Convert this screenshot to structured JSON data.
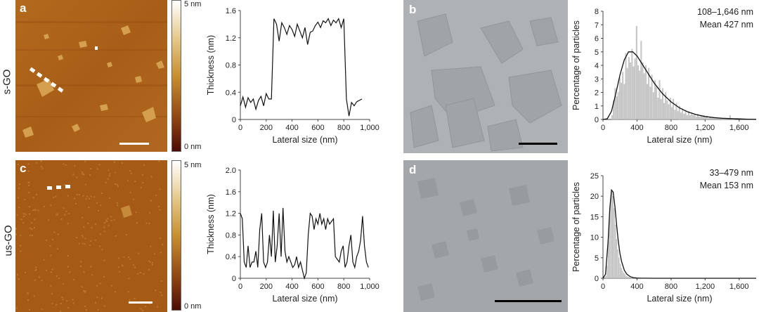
{
  "figure": {
    "row_labels": [
      "s-GO",
      "us-GO"
    ],
    "panels": {
      "a": {
        "letter": "a"
      },
      "b": {
        "letter": "b"
      },
      "c": {
        "letter": "c"
      },
      "d": {
        "letter": "d"
      }
    },
    "colorbar": {
      "top_label": "5 nm",
      "bottom_label": "0 nm"
    },
    "stats": {
      "b": {
        "range": "108–1,646 nm",
        "mean": "Mean 427 nm"
      },
      "d": {
        "range": "33–479 nm",
        "mean": "Mean 153 nm"
      }
    },
    "colors": {
      "afm_mid": "#b36a1c",
      "afm_dark": "#7a2e0b",
      "tem_bg": "#a9adb0",
      "line": "#111111",
      "hist_bar": "#c8c8c8"
    }
  },
  "chart_data": [
    {
      "id": "profile-top",
      "type": "line",
      "title": "",
      "xlabel": "Lateral size (nm)",
      "ylabel": "Thickness (nm)",
      "xlim": [
        0,
        1000
      ],
      "ylim": [
        0,
        1.6
      ],
      "xticks": [
        0,
        200,
        400,
        600,
        800,
        1000
      ],
      "xtick_labels": [
        "0",
        "200",
        "400",
        "600",
        "800",
        "1,000"
      ],
      "yticks": [
        0,
        0.4,
        0.8,
        1.2,
        1.6
      ],
      "ytick_labels": [
        "0",
        "0.4",
        "0.8",
        "1.2",
        "1.6"
      ],
      "x": [
        0,
        20,
        40,
        60,
        80,
        100,
        120,
        140,
        160,
        180,
        200,
        220,
        240,
        260,
        280,
        300,
        320,
        340,
        360,
        380,
        400,
        420,
        440,
        460,
        480,
        500,
        520,
        540,
        560,
        580,
        600,
        620,
        640,
        660,
        680,
        700,
        720,
        740,
        760,
        780,
        800,
        820,
        840,
        860,
        880,
        900,
        920,
        940
      ],
      "y": [
        0.2,
        0.33,
        0.18,
        0.32,
        0.25,
        0.3,
        0.15,
        0.28,
        0.34,
        0.2,
        0.38,
        0.3,
        0.3,
        1.48,
        1.4,
        1.15,
        1.42,
        1.35,
        1.25,
        1.38,
        1.32,
        1.22,
        1.4,
        1.3,
        1.2,
        1.35,
        1.1,
        1.28,
        1.3,
        1.38,
        1.43,
        1.35,
        1.45,
        1.42,
        1.48,
        1.38,
        1.46,
        1.42,
        1.48,
        1.35,
        1.48,
        0.3,
        0.05,
        0.25,
        0.2,
        0.26,
        0.28,
        0.3
      ]
    },
    {
      "id": "profile-bottom",
      "type": "line",
      "title": "",
      "xlabel": "Lateral size (nm)",
      "ylabel": "Thickness (nm)",
      "xlim": [
        0,
        1000
      ],
      "ylim": [
        0,
        2.0
      ],
      "xticks": [
        0,
        200,
        400,
        600,
        800,
        1000
      ],
      "xtick_labels": [
        "0",
        "200",
        "400",
        "600",
        "800",
        "1,000"
      ],
      "yticks": [
        0,
        0.4,
        0.8,
        1.2,
        1.6,
        2.0
      ],
      "ytick_labels": [
        "0",
        "0.4",
        "0.8",
        "1.2",
        "1.6",
        "2.0"
      ],
      "x": [
        0,
        15,
        30,
        45,
        60,
        75,
        90,
        105,
        120,
        135,
        150,
        165,
        180,
        195,
        210,
        225,
        240,
        255,
        270,
        285,
        300,
        315,
        330,
        345,
        360,
        375,
        390,
        405,
        420,
        435,
        450,
        465,
        480,
        495,
        510,
        525,
        540,
        555,
        570,
        585,
        600,
        615,
        630,
        645,
        660,
        675,
        690,
        705,
        720,
        735,
        750,
        765,
        780,
        795,
        810,
        825,
        840,
        855,
        870,
        885,
        900,
        915,
        930,
        945,
        960,
        975,
        990
      ],
      "y": [
        1.2,
        1.1,
        0.3,
        0.2,
        0.6,
        0.2,
        0.3,
        0.3,
        0.5,
        0.2,
        0.9,
        1.2,
        0.3,
        0.2,
        0.3,
        0.8,
        0.4,
        1.25,
        0.3,
        0.6,
        1.2,
        0.4,
        1.3,
        0.5,
        0.3,
        0.4,
        0.3,
        0.2,
        0.25,
        0.4,
        0.2,
        0.3,
        0.15,
        0.0,
        0.1,
        0.8,
        1.2,
        1.15,
        0.9,
        1.1,
        1.0,
        1.2,
        1.0,
        1.1,
        0.9,
        1.1,
        1.0,
        1.05,
        1.1,
        0.4,
        0.35,
        0.3,
        0.5,
        0.6,
        0.2,
        0.3,
        0.6,
        0.8,
        0.3,
        0.2,
        0.4,
        0.5,
        0.7,
        1.15,
        0.6,
        0.3,
        0.2
      ]
    },
    {
      "id": "hist-top",
      "type": "bar",
      "title": "",
      "xlabel": "Lateral size (nm)",
      "ylabel": "Percentage of particles",
      "xlim": [
        0,
        1800
      ],
      "ylim": [
        0,
        8
      ],
      "xticks": [
        0,
        400,
        800,
        1200,
        1600
      ],
      "xtick_labels": [
        "0",
        "400",
        "800",
        "1,200",
        "1,600"
      ],
      "yticks": [
        0,
        1,
        2,
        3,
        4,
        5,
        6,
        7,
        8
      ],
      "ytick_labels": [
        "0",
        "1",
        "2",
        "3",
        "4",
        "5",
        "6",
        "7",
        "8"
      ],
      "bin_width": 18,
      "bins_start": 100,
      "values": [
        0.3,
        1.4,
        2.3,
        1.7,
        2.0,
        3.1,
        2.7,
        3.5,
        2.6,
        4.9,
        3.8,
        4.6,
        4.2,
        5.2,
        3.9,
        4.5,
        6.9,
        4.0,
        3.6,
        5.8,
        4.2,
        3.4,
        4.0,
        2.6,
        3.8,
        2.4,
        3.3,
        2.0,
        2.9,
        2.4,
        1.6,
        2.9,
        1.5,
        2.3,
        1.2,
        2.0,
        1.4,
        1.1,
        1.6,
        0.9,
        1.5,
        0.7,
        1.2,
        0.6,
        1.0,
        0.5,
        0.8,
        0.4,
        0.7,
        0.3,
        0.6,
        0.3,
        0.5,
        0.3,
        0.4,
        0.2,
        0.4,
        0.2,
        0.3,
        0.2,
        0.3,
        0.15,
        0.25,
        0.1,
        0.2,
        0.1,
        0.15,
        0.1,
        0.15,
        0.1,
        0.1,
        0.1,
        0.1,
        0.05,
        0.1,
        0.05,
        0.1,
        0.3,
        0.1,
        0.05,
        0.05
      ],
      "fit_x": [
        0,
        50,
        100,
        150,
        200,
        250,
        300,
        350,
        400,
        450,
        500,
        550,
        600,
        650,
        700,
        800,
        900,
        1000,
        1100,
        1200,
        1300,
        1400,
        1500,
        1600,
        1700,
        1800
      ],
      "fit_y": [
        0,
        0.05,
        0.6,
        1.9,
        3.3,
        4.4,
        5.0,
        5.0,
        4.7,
        4.2,
        3.7,
        3.2,
        2.7,
        2.3,
        1.9,
        1.3,
        0.85,
        0.55,
        0.35,
        0.22,
        0.14,
        0.09,
        0.06,
        0.04,
        0.02,
        0.01
      ]
    },
    {
      "id": "hist-bottom",
      "type": "bar",
      "title": "",
      "xlabel": "Lateral size (nm)",
      "ylabel": "Percentage of particles",
      "xlim": [
        0,
        1800
      ],
      "ylim": [
        0,
        25
      ],
      "xticks": [
        0,
        400,
        800,
        1200,
        1600
      ],
      "xtick_labels": [
        "0",
        "400",
        "800",
        "1,200",
        "1,600"
      ],
      "yticks": [
        0,
        5,
        10,
        15,
        20,
        25
      ],
      "ytick_labels": [
        "0",
        "5",
        "10",
        "15",
        "20",
        "25"
      ],
      "bin_width": 14,
      "bins_start": 30,
      "values": [
        0.5,
        3.0,
        9.0,
        15.0,
        19.5,
        21.0,
        20.0,
        17.0,
        13.0,
        9.5,
        7.0,
        5.0,
        3.5,
        2.5,
        1.8,
        1.3,
        0.9,
        0.6,
        0.4,
        0.3,
        0.2,
        0.15,
        0.1,
        0.1,
        0.05,
        0.05
      ],
      "fit_x": [
        0,
        30,
        60,
        80,
        100,
        120,
        140,
        160,
        180,
        200,
        220,
        250,
        280,
        320,
        360,
        400,
        450,
        500,
        600,
        800,
        1800
      ],
      "fit_y": [
        0,
        1.0,
        9.0,
        17.0,
        21.5,
        21.0,
        17.5,
        13.0,
        9.0,
        6.0,
        4.0,
        2.0,
        1.0,
        0.4,
        0.15,
        0.06,
        0.02,
        0.01,
        0,
        0,
        0
      ]
    }
  ]
}
